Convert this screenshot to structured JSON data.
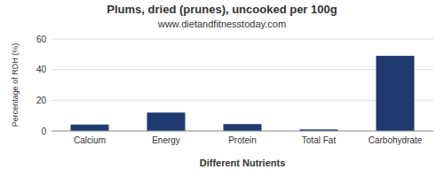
{
  "chart_data": {
    "type": "bar",
    "title": "Plums, dried (prunes), uncooked per 100g",
    "subtitle": "www.dietandfitnesstoday.com",
    "xlabel": "Different Nutrients",
    "ylabel": "Percentage of RDH (%)",
    "categories": [
      "Calcium",
      "Energy",
      "Protein",
      "Total Fat",
      "Carbohydrate"
    ],
    "values": [
      4.2,
      12.0,
      4.5,
      1.0,
      49.0
    ],
    "color": "#1f3a6e",
    "ylim": [
      0,
      60
    ],
    "yticks": [
      0,
      20,
      40,
      60
    ],
    "grid": true
  }
}
